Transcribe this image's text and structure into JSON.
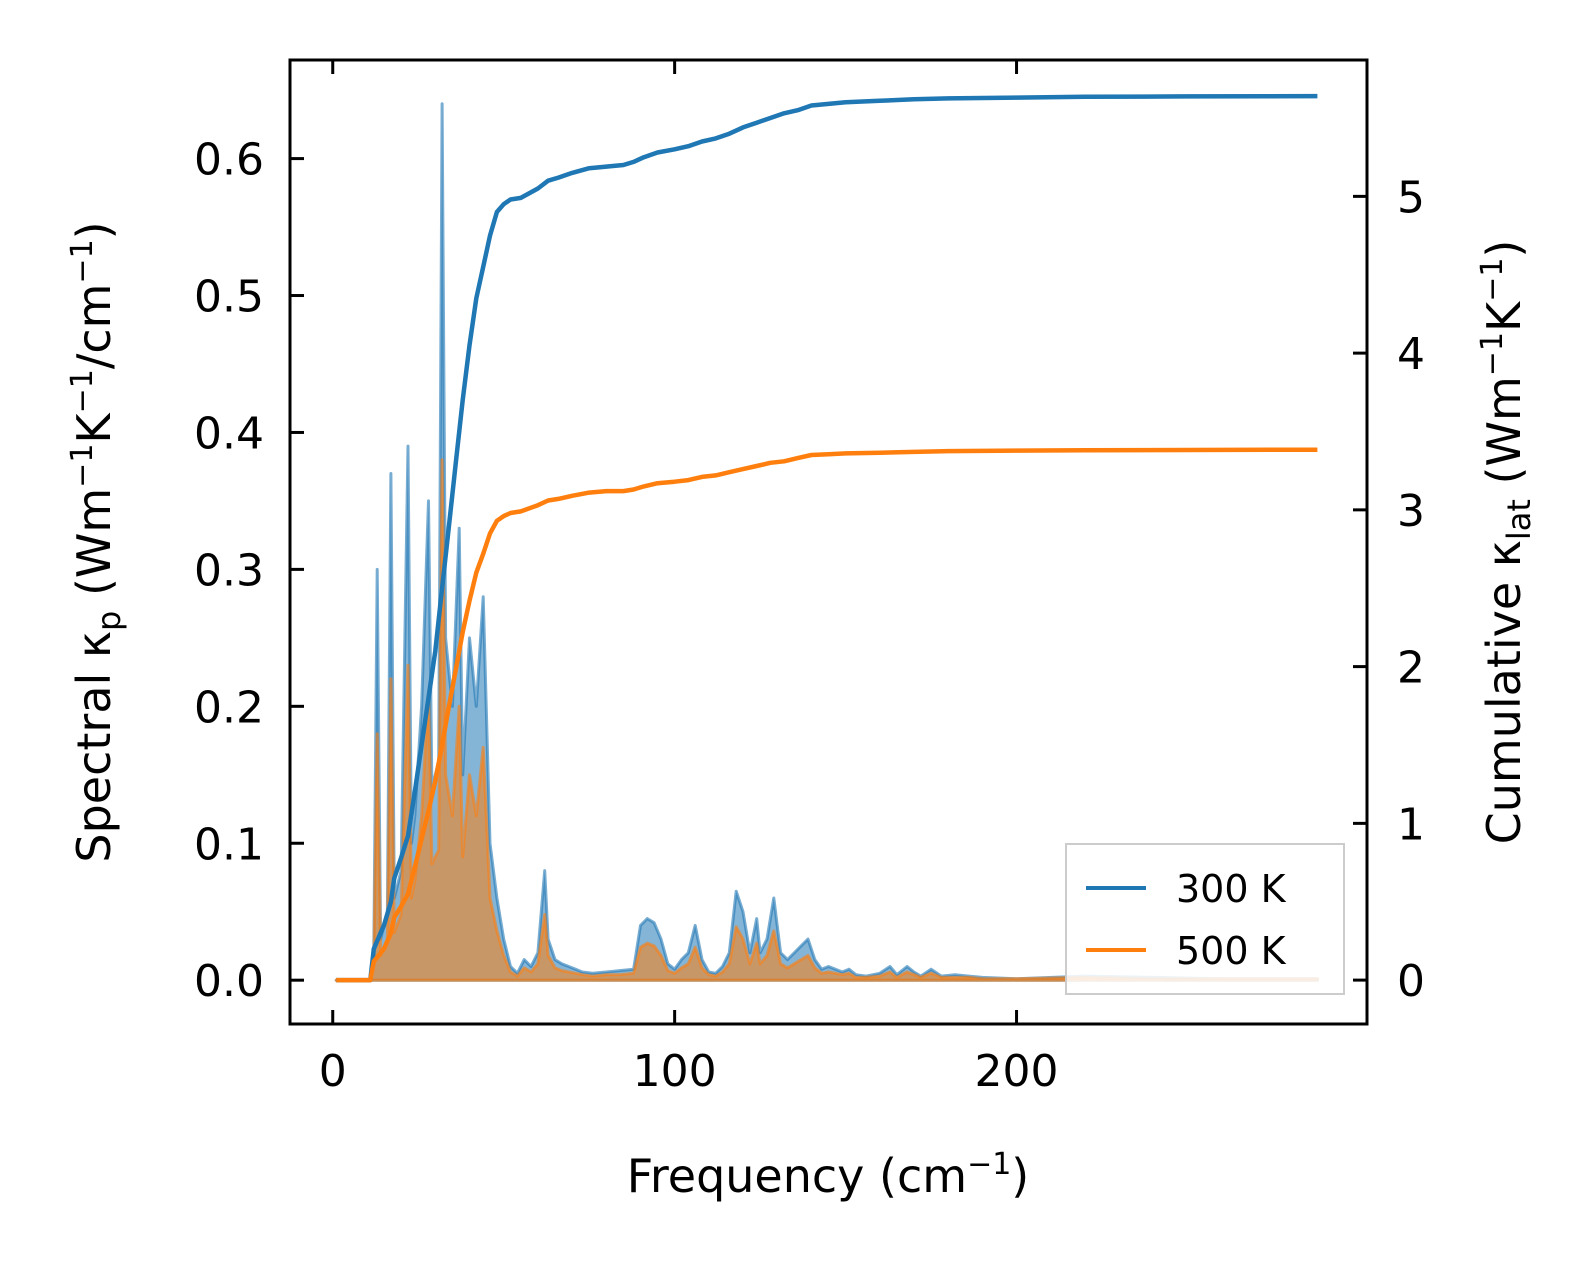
{
  "chart_data": {
    "type": "line",
    "xlabel": "Frequency (cm⁻¹)",
    "ylabel_left": "Spectral κₚ (Wm⁻¹K⁻¹/cm⁻¹)",
    "ylabel_right": "Cumulative κₗₐₜ (Wm⁻¹K⁻¹)",
    "xlim": [
      -12.5,
      302.5
    ],
    "ylim_left": [
      -0.032,
      0.672
    ],
    "ylim_right": [
      -0.28,
      5.87
    ],
    "xticks": [
      0,
      100,
      200
    ],
    "xtick_labels": [
      "0",
      "100",
      "200"
    ],
    "yticks_left": [
      0.0,
      0.1,
      0.2,
      0.3,
      0.4,
      0.5,
      0.6
    ],
    "ytick_labels_left": [
      "0.0",
      "0.1",
      "0.2",
      "0.3",
      "0.4",
      "0.5",
      "0.6"
    ],
    "yticks_right": [
      0,
      1,
      2,
      3,
      4,
      5
    ],
    "ytick_labels_right": [
      "0",
      "1",
      "2",
      "3",
      "4",
      "5"
    ],
    "legend": {
      "placement": "bottom-right",
      "entries": [
        "300 K",
        "500 K"
      ]
    },
    "series": [
      {
        "name": "300 K",
        "color": "#1f77b4",
        "cumulative": [
          [
            1,
            0
          ],
          [
            11,
            0
          ],
          [
            12,
            0.2
          ],
          [
            15,
            0.35
          ],
          [
            17,
            0.5
          ],
          [
            18,
            0.65
          ],
          [
            20,
            0.78
          ],
          [
            22,
            0.92
          ],
          [
            24,
            1.2
          ],
          [
            26,
            1.5
          ],
          [
            28,
            1.8
          ],
          [
            30,
            2.1
          ],
          [
            32,
            2.5
          ],
          [
            34,
            2.9
          ],
          [
            36,
            3.3
          ],
          [
            38,
            3.7
          ],
          [
            40,
            4.05
          ],
          [
            42,
            4.35
          ],
          [
            44,
            4.55
          ],
          [
            46,
            4.75
          ],
          [
            48,
            4.9
          ],
          [
            50,
            4.95
          ],
          [
            52,
            4.98
          ],
          [
            55,
            4.99
          ],
          [
            60,
            5.05
          ],
          [
            63,
            5.1
          ],
          [
            66,
            5.12
          ],
          [
            70,
            5.15
          ],
          [
            75,
            5.18
          ],
          [
            80,
            5.19
          ],
          [
            85,
            5.2
          ],
          [
            88,
            5.22
          ],
          [
            91,
            5.25
          ],
          [
            95,
            5.28
          ],
          [
            100,
            5.3
          ],
          [
            104,
            5.32
          ],
          [
            108,
            5.35
          ],
          [
            112,
            5.37
          ],
          [
            116,
            5.4
          ],
          [
            120,
            5.44
          ],
          [
            124,
            5.47
          ],
          [
            128,
            5.5
          ],
          [
            132,
            5.53
          ],
          [
            136,
            5.55
          ],
          [
            140,
            5.58
          ],
          [
            145,
            5.59
          ],
          [
            150,
            5.6
          ],
          [
            160,
            5.61
          ],
          [
            170,
            5.62
          ],
          [
            180,
            5.625
          ],
          [
            200,
            5.63
          ],
          [
            220,
            5.635
          ],
          [
            250,
            5.638
          ],
          [
            288,
            5.64
          ]
        ],
        "spectral": [
          [
            1,
            0
          ],
          [
            11,
            0
          ],
          [
            12,
            0.02
          ],
          [
            13,
            0.3
          ],
          [
            14,
            0.03
          ],
          [
            16,
            0.05
          ],
          [
            17,
            0.37
          ],
          [
            18,
            0.06
          ],
          [
            20,
            0.08
          ],
          [
            22,
            0.39
          ],
          [
            23,
            0.1
          ],
          [
            24,
            0.12
          ],
          [
            26,
            0.2
          ],
          [
            28,
            0.35
          ],
          [
            29,
            0.14
          ],
          [
            31,
            0.16
          ],
          [
            32,
            0.64
          ],
          [
            33,
            0.25
          ],
          [
            35,
            0.2
          ],
          [
            37,
            0.33
          ],
          [
            38,
            0.15
          ],
          [
            40,
            0.25
          ],
          [
            42,
            0.2
          ],
          [
            44,
            0.28
          ],
          [
            46,
            0.1
          ],
          [
            48,
            0.06
          ],
          [
            50,
            0.03
          ],
          [
            52,
            0.01
          ],
          [
            54,
            0.005
          ],
          [
            56,
            0.015
          ],
          [
            58,
            0.01
          ],
          [
            60,
            0.02
          ],
          [
            62,
            0.08
          ],
          [
            63,
            0.03
          ],
          [
            65,
            0.015
          ],
          [
            67,
            0.012
          ],
          [
            69,
            0.01
          ],
          [
            71,
            0.008
          ],
          [
            73,
            0.006
          ],
          [
            76,
            0.005
          ],
          [
            80,
            0.006
          ],
          [
            84,
            0.007
          ],
          [
            88,
            0.008
          ],
          [
            90,
            0.04
          ],
          [
            92,
            0.045
          ],
          [
            94,
            0.042
          ],
          [
            96,
            0.03
          ],
          [
            98,
            0.012
          ],
          [
            100,
            0.008
          ],
          [
            102,
            0.015
          ],
          [
            104,
            0.02
          ],
          [
            106,
            0.04
          ],
          [
            108,
            0.015
          ],
          [
            110,
            0.006
          ],
          [
            112,
            0.005
          ],
          [
            114,
            0.01
          ],
          [
            116,
            0.02
          ],
          [
            118,
            0.065
          ],
          [
            120,
            0.05
          ],
          [
            122,
            0.02
          ],
          [
            124,
            0.045
          ],
          [
            125,
            0.02
          ],
          [
            127,
            0.03
          ],
          [
            129,
            0.06
          ],
          [
            131,
            0.02
          ],
          [
            133,
            0.015
          ],
          [
            135,
            0.02
          ],
          [
            137,
            0.025
          ],
          [
            139,
            0.03
          ],
          [
            141,
            0.015
          ],
          [
            143,
            0.008
          ],
          [
            145,
            0.01
          ],
          [
            147,
            0.008
          ],
          [
            149,
            0.006
          ],
          [
            151,
            0.008
          ],
          [
            153,
            0.004
          ],
          [
            156,
            0.003
          ],
          [
            160,
            0.005
          ],
          [
            163,
            0.01
          ],
          [
            165,
            0.004
          ],
          [
            168,
            0.01
          ],
          [
            170,
            0.006
          ],
          [
            172,
            0.003
          ],
          [
            175,
            0.008
          ],
          [
            178,
            0.003
          ],
          [
            182,
            0.004
          ],
          [
            186,
            0.003
          ],
          [
            190,
            0.002
          ],
          [
            200,
            0.001
          ],
          [
            220,
            0.003
          ],
          [
            240,
            0.002
          ],
          [
            260,
            0.001
          ],
          [
            288,
            0.001
          ]
        ]
      },
      {
        "name": "500 K",
        "color": "#ff7f0e",
        "cumulative": [
          [
            1,
            0
          ],
          [
            11,
            0
          ],
          [
            12,
            0.12
          ],
          [
            15,
            0.2
          ],
          [
            17,
            0.3
          ],
          [
            18,
            0.4
          ],
          [
            20,
            0.47
          ],
          [
            22,
            0.55
          ],
          [
            24,
            0.72
          ],
          [
            26,
            0.9
          ],
          [
            28,
            1.08
          ],
          [
            30,
            1.27
          ],
          [
            32,
            1.5
          ],
          [
            34,
            1.75
          ],
          [
            36,
            1.98
          ],
          [
            38,
            2.22
          ],
          [
            40,
            2.42
          ],
          [
            42,
            2.6
          ],
          [
            44,
            2.72
          ],
          [
            46,
            2.85
          ],
          [
            48,
            2.93
          ],
          [
            50,
            2.96
          ],
          [
            52,
            2.98
          ],
          [
            55,
            2.99
          ],
          [
            60,
            3.03
          ],
          [
            63,
            3.06
          ],
          [
            66,
            3.07
          ],
          [
            70,
            3.09
          ],
          [
            75,
            3.11
          ],
          [
            80,
            3.12
          ],
          [
            85,
            3.12
          ],
          [
            88,
            3.13
          ],
          [
            91,
            3.15
          ],
          [
            95,
            3.17
          ],
          [
            100,
            3.18
          ],
          [
            104,
            3.19
          ],
          [
            108,
            3.21
          ],
          [
            112,
            3.22
          ],
          [
            116,
            3.24
          ],
          [
            120,
            3.26
          ],
          [
            124,
            3.28
          ],
          [
            128,
            3.3
          ],
          [
            132,
            3.31
          ],
          [
            136,
            3.33
          ],
          [
            140,
            3.35
          ],
          [
            145,
            3.355
          ],
          [
            150,
            3.36
          ],
          [
            160,
            3.365
          ],
          [
            170,
            3.37
          ],
          [
            180,
            3.375
          ],
          [
            200,
            3.378
          ],
          [
            220,
            3.38
          ],
          [
            250,
            3.382
          ],
          [
            288,
            3.384
          ]
        ],
        "spectral": [
          [
            1,
            0
          ],
          [
            11,
            0
          ],
          [
            12,
            0.012
          ],
          [
            13,
            0.18
          ],
          [
            14,
            0.018
          ],
          [
            16,
            0.03
          ],
          [
            17,
            0.22
          ],
          [
            18,
            0.035
          ],
          [
            20,
            0.048
          ],
          [
            22,
            0.23
          ],
          [
            23,
            0.06
          ],
          [
            24,
            0.072
          ],
          [
            26,
            0.12
          ],
          [
            28,
            0.21
          ],
          [
            29,
            0.085
          ],
          [
            31,
            0.095
          ],
          [
            32,
            0.38
          ],
          [
            33,
            0.15
          ],
          [
            35,
            0.12
          ],
          [
            37,
            0.2
          ],
          [
            38,
            0.09
          ],
          [
            40,
            0.15
          ],
          [
            42,
            0.12
          ],
          [
            44,
            0.17
          ],
          [
            46,
            0.06
          ],
          [
            48,
            0.036
          ],
          [
            50,
            0.018
          ],
          [
            52,
            0.006
          ],
          [
            54,
            0.003
          ],
          [
            56,
            0.009
          ],
          [
            58,
            0.006
          ],
          [
            60,
            0.012
          ],
          [
            62,
            0.048
          ],
          [
            63,
            0.018
          ],
          [
            65,
            0.009
          ],
          [
            67,
            0.007
          ],
          [
            69,
            0.006
          ],
          [
            71,
            0.005
          ],
          [
            73,
            0.004
          ],
          [
            76,
            0.003
          ],
          [
            80,
            0.004
          ],
          [
            84,
            0.004
          ],
          [
            88,
            0.005
          ],
          [
            90,
            0.024
          ],
          [
            92,
            0.027
          ],
          [
            94,
            0.025
          ],
          [
            96,
            0.018
          ],
          [
            98,
            0.007
          ],
          [
            100,
            0.005
          ],
          [
            102,
            0.009
          ],
          [
            104,
            0.012
          ],
          [
            106,
            0.024
          ],
          [
            108,
            0.009
          ],
          [
            110,
            0.004
          ],
          [
            112,
            0.003
          ],
          [
            114,
            0.006
          ],
          [
            116,
            0.012
          ],
          [
            118,
            0.039
          ],
          [
            120,
            0.03
          ],
          [
            122,
            0.012
          ],
          [
            124,
            0.027
          ],
          [
            125,
            0.012
          ],
          [
            127,
            0.018
          ],
          [
            129,
            0.036
          ],
          [
            131,
            0.012
          ],
          [
            133,
            0.009
          ],
          [
            135,
            0.012
          ],
          [
            137,
            0.015
          ],
          [
            139,
            0.018
          ],
          [
            141,
            0.009
          ],
          [
            143,
            0.005
          ],
          [
            145,
            0.006
          ],
          [
            147,
            0.005
          ],
          [
            149,
            0.004
          ],
          [
            151,
            0.005
          ],
          [
            153,
            0.002
          ],
          [
            156,
            0.002
          ],
          [
            160,
            0.003
          ],
          [
            163,
            0.006
          ],
          [
            165,
            0.002
          ],
          [
            168,
            0.006
          ],
          [
            170,
            0.004
          ],
          [
            172,
            0.002
          ],
          [
            175,
            0.005
          ],
          [
            178,
            0.002
          ],
          [
            182,
            0.002
          ],
          [
            186,
            0.002
          ],
          [
            190,
            0.001
          ],
          [
            200,
            0.001
          ],
          [
            220,
            0.002
          ],
          [
            240,
            0.001
          ],
          [
            260,
            0.001
          ],
          [
            288,
            0.001
          ]
        ]
      }
    ]
  }
}
